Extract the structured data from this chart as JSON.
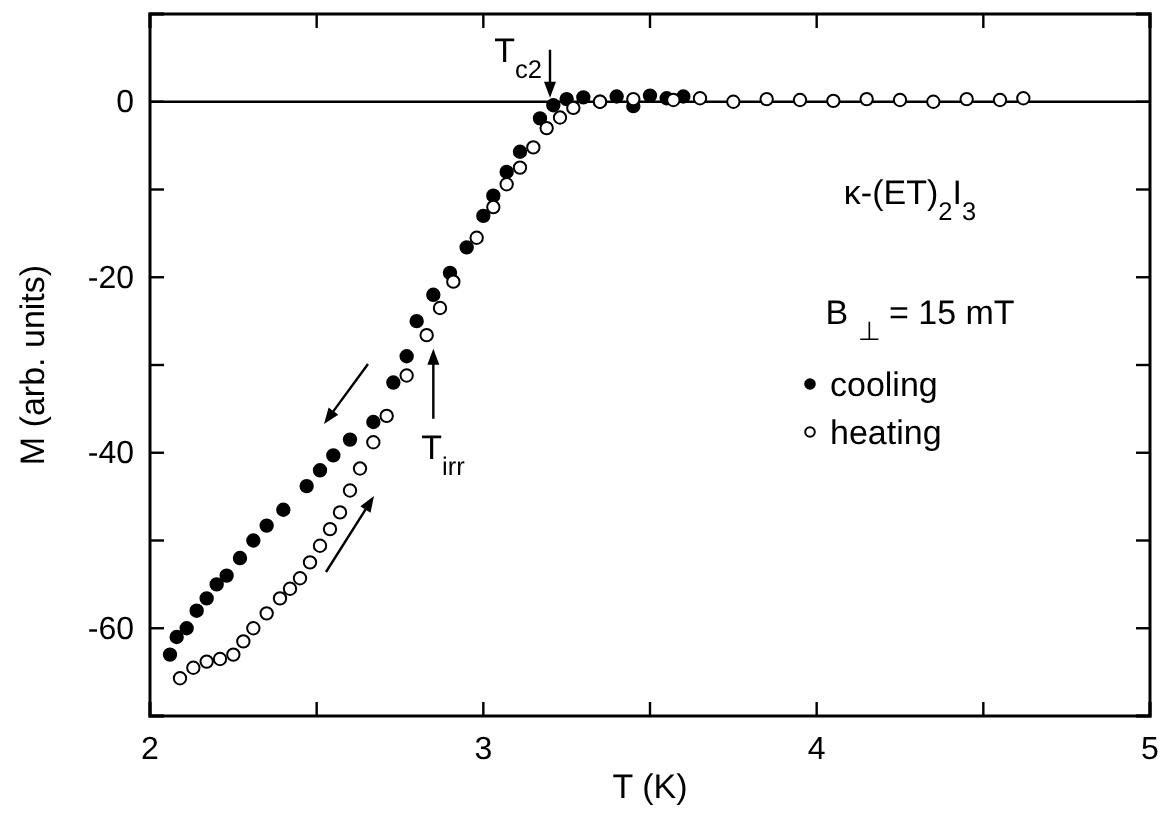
{
  "chart_data": {
    "type": "scatter",
    "xlabel": "T (K)",
    "ylabel": "M (arb. units)",
    "xlim": [
      2,
      5
    ],
    "ylim": [
      -70,
      10
    ],
    "xticks": [
      2,
      {
        "value": 2.5,
        "label": null
      },
      3,
      {
        "value": 3.5,
        "label": null
      },
      4,
      {
        "value": 4.5,
        "label": null
      },
      5
    ],
    "yticks": [
      {
        "value": -70,
        "label": null
      },
      -60,
      {
        "value": -50,
        "label": null
      },
      -40,
      {
        "value": -30,
        "label": null
      },
      -20,
      {
        "value": -10,
        "label": null
      },
      0,
      {
        "value": 10,
        "label": null
      }
    ],
    "marker": "circle",
    "legend": "right",
    "grid": false,
    "ref_lines": [
      {
        "axis": "y",
        "value": 0,
        "color": "#000000"
      }
    ],
    "annotations": [
      {
        "text": "T$_{c2}$",
        "x": 3.2,
        "y": 0
      },
      {
        "text": "T$_{irr}$",
        "x": 2.85,
        "y": -27
      },
      "κ-(ET)$_{2}$I$_{3}$",
      "B $_{⊥}$ = 15 mT"
    ],
    "series": [
      {
        "name": "cooling",
        "color": "#000000",
        "x": [
          2.06,
          2.08,
          2.11,
          2.14,
          2.17,
          2.2,
          2.23,
          2.27,
          2.31,
          2.35,
          2.4,
          2.47,
          2.51,
          2.55,
          2.6,
          2.67,
          2.73,
          2.77,
          2.8,
          2.85,
          2.9,
          2.95,
          3.0,
          3.03,
          3.07,
          3.11,
          3.17,
          3.21,
          3.25,
          3.3,
          3.35,
          3.4,
          3.45,
          3.5,
          3.55,
          3.6
        ],
        "values": [
          -63,
          -61,
          -60,
          -58,
          -56.6,
          -55,
          -54,
          -52,
          -50,
          -48.3,
          -46.5,
          -43.8,
          -42,
          -40.3,
          -38.5,
          -36.5,
          -32,
          -29,
          -25,
          -22,
          -19.5,
          -16.6,
          -13,
          -10.7,
          -8,
          -5.7,
          -1.9,
          -0.4,
          0.3,
          0.5,
          0,
          0.6,
          -0.5,
          0.7,
          0.4,
          0.6
        ]
      },
      {
        "name": "heating",
        "color": "#000000",
        "x": [
          2.09,
          2.13,
          2.17,
          2.21,
          2.25,
          2.28,
          2.31,
          2.35,
          2.39,
          2.42,
          2.45,
          2.48,
          2.51,
          2.54,
          2.57,
          2.6,
          2.63,
          2.67,
          2.71,
          2.77,
          2.83,
          2.87,
          2.91,
          2.98,
          3.03,
          3.07,
          3.11,
          3.15,
          3.19,
          3.23,
          3.27,
          3.35,
          3.45,
          3.57,
          3.65,
          3.75,
          3.85,
          3.95,
          4.05,
          4.15,
          4.25,
          4.35,
          4.45,
          4.55,
          4.62
        ],
        "values": [
          -65.7,
          -64.5,
          -63.8,
          -63.5,
          -63,
          -61.5,
          -60,
          -58.3,
          -56.6,
          -55.5,
          -54.3,
          -52.5,
          -50.6,
          -48.7,
          -46.8,
          -44.3,
          -41.8,
          -38.8,
          -35.8,
          -31.2,
          -26.6,
          -23.5,
          -20.5,
          -15.5,
          -12,
          -9.4,
          -7.5,
          -5.2,
          -3,
          -1.8,
          -0.7,
          0,
          0.3,
          0.2,
          0.4,
          0,
          0.3,
          0.2,
          0.1,
          0.3,
          0.2,
          0,
          0.3,
          0.2,
          0.4
        ]
      }
    ]
  }
}
